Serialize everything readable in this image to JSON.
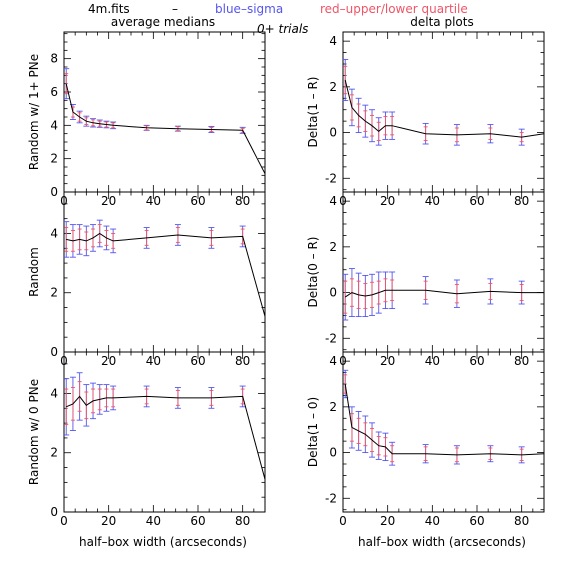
{
  "header": {
    "file_label": "4m.fits",
    "dash": "–",
    "blue_label": "blue–sigma",
    "red_label": "red–upper/lower quartile",
    "trials_label": "0+ trials",
    "left_title": "average medians",
    "right_title": "delta plots"
  },
  "colors": {
    "line": "#000000",
    "blue": "#5555ee",
    "red": "#ee5566"
  },
  "chart_data": [
    {
      "type": "line",
      "ylabel": "Random w/ 1+ PNe",
      "xlim": [
        0,
        90
      ],
      "ylim": [
        0,
        9.6
      ],
      "xticks": [
        0,
        20,
        40,
        60,
        80
      ],
      "yticks": [
        0,
        2,
        4,
        6,
        8
      ],
      "x": [
        1,
        4,
        7,
        10,
        13,
        16,
        19,
        22,
        37,
        51,
        66,
        80,
        90
      ],
      "y": [
        6.5,
        4.8,
        4.5,
        4.25,
        4.15,
        4.1,
        4.05,
        4.0,
        3.85,
        3.8,
        3.75,
        3.7,
        1.1
      ],
      "sigma": [
        0.9,
        0.45,
        0.35,
        0.3,
        0.25,
        0.22,
        0.2,
        0.2,
        0.15,
        0.15,
        0.18,
        0.18,
        null
      ],
      "quartile": [
        0.6,
        0.3,
        0.25,
        0.2,
        0.18,
        0.15,
        0.15,
        0.15,
        0.12,
        0.12,
        0.12,
        0.12,
        null
      ]
    },
    {
      "type": "line",
      "ylabel": "Delta(1 – R)",
      "xlim": [
        0,
        90
      ],
      "ylim": [
        -2.6,
        4.4
      ],
      "xticks": [
        0,
        20,
        40,
        60,
        80
      ],
      "yticks": [
        -2,
        0,
        2,
        4
      ],
      "x": [
        1,
        4,
        7,
        10,
        13,
        16,
        19,
        22,
        37,
        51,
        66,
        80,
        90
      ],
      "y": [
        2.3,
        1.1,
        0.75,
        0.5,
        0.3,
        0.05,
        0.3,
        0.3,
        -0.05,
        -0.1,
        -0.05,
        -0.2,
        -0.05
      ],
      "sigma": [
        0.9,
        0.8,
        0.75,
        0.7,
        0.7,
        0.6,
        0.6,
        0.6,
        0.45,
        0.45,
        0.4,
        0.35,
        null
      ],
      "quartile": [
        0.6,
        0.55,
        0.5,
        0.45,
        0.45,
        0.4,
        0.4,
        0.4,
        0.3,
        0.3,
        0.25,
        0.2,
        null
      ]
    },
    {
      "type": "line",
      "ylabel": "Random",
      "xlim": [
        0,
        90
      ],
      "ylim": [
        0,
        5.4
      ],
      "xticks": [
        0,
        20,
        40,
        60,
        80
      ],
      "yticks": [
        0,
        2,
        4
      ],
      "x": [
        1,
        4,
        7,
        10,
        13,
        16,
        19,
        22,
        37,
        51,
        66,
        80,
        90
      ],
      "y": [
        3.8,
        3.75,
        3.8,
        3.75,
        3.85,
        4.0,
        3.85,
        3.75,
        3.85,
        3.95,
        3.85,
        3.9,
        1.2
      ],
      "sigma": [
        0.6,
        0.55,
        0.5,
        0.5,
        0.45,
        0.45,
        0.4,
        0.4,
        0.35,
        0.35,
        0.35,
        0.35,
        null
      ],
      "quartile": [
        0.4,
        0.35,
        0.35,
        0.3,
        0.3,
        0.3,
        0.25,
        0.25,
        0.25,
        0.25,
        0.25,
        0.25,
        null
      ]
    },
    {
      "type": "line",
      "ylabel": "Delta(0 – R)",
      "xlim": [
        0,
        90
      ],
      "ylim": [
        -2.6,
        4.4
      ],
      "xticks": [
        0,
        20,
        40,
        60,
        80
      ],
      "yticks": [
        -2,
        0,
        2,
        4
      ],
      "x": [
        1,
        4,
        7,
        10,
        13,
        16,
        19,
        22,
        37,
        51,
        66,
        80,
        90
      ],
      "y": [
        -0.2,
        0.0,
        -0.1,
        -0.15,
        -0.1,
        0.0,
        0.1,
        0.1,
        0.1,
        -0.05,
        0.05,
        0.0,
        0.0
      ],
      "sigma": [
        1.0,
        1.05,
        0.95,
        0.9,
        0.9,
        0.9,
        0.8,
        0.8,
        0.6,
        0.6,
        0.55,
        0.5,
        null
      ],
      "quartile": [
        0.7,
        0.6,
        0.6,
        0.55,
        0.55,
        0.5,
        0.5,
        0.45,
        0.4,
        0.4,
        0.35,
        0.35,
        null
      ]
    },
    {
      "type": "line",
      "ylabel": "Random w/ 0 PNe",
      "xlim": [
        0,
        90
      ],
      "ylim": [
        0,
        5.4
      ],
      "xticks": [
        0,
        20,
        40,
        60,
        80
      ],
      "yticks": [
        0,
        2,
        4
      ],
      "x": [
        1,
        4,
        7,
        10,
        13,
        16,
        19,
        22,
        37,
        51,
        66,
        80,
        90
      ],
      "y": [
        3.55,
        3.65,
        3.9,
        3.6,
        3.75,
        3.8,
        3.85,
        3.85,
        3.9,
        3.85,
        3.85,
        3.9,
        1.1
      ],
      "sigma": [
        0.95,
        0.9,
        0.8,
        0.7,
        0.6,
        0.5,
        0.45,
        0.4,
        0.35,
        0.35,
        0.35,
        0.35,
        null
      ],
      "quartile": [
        0.6,
        0.55,
        0.5,
        0.45,
        0.4,
        0.35,
        0.3,
        0.3,
        0.25,
        0.25,
        0.25,
        0.25,
        null
      ]
    },
    {
      "type": "line",
      "ylabel": "Delta(1 – 0)",
      "xlim": [
        0,
        90
      ],
      "ylim": [
        -2.6,
        4.4
      ],
      "xticks": [
        0,
        20,
        40,
        60,
        80
      ],
      "yticks": [
        -2,
        0,
        2,
        4
      ],
      "x": [
        1,
        4,
        7,
        10,
        13,
        16,
        19,
        22,
        37,
        51,
        66,
        80,
        90
      ],
      "y": [
        3.0,
        1.1,
        0.95,
        0.8,
        0.55,
        0.3,
        0.25,
        -0.05,
        -0.05,
        -0.1,
        -0.05,
        -0.1,
        -0.05
      ],
      "sigma": [
        0.6,
        0.9,
        0.85,
        0.8,
        0.75,
        0.6,
        0.6,
        0.5,
        0.4,
        0.4,
        0.35,
        0.35,
        null
      ],
      "quartile": [
        0.4,
        0.6,
        0.55,
        0.5,
        0.5,
        0.4,
        0.4,
        0.35,
        0.3,
        0.3,
        0.25,
        0.25,
        null
      ]
    }
  ],
  "xlabel": "half–box width (arcseconds)"
}
